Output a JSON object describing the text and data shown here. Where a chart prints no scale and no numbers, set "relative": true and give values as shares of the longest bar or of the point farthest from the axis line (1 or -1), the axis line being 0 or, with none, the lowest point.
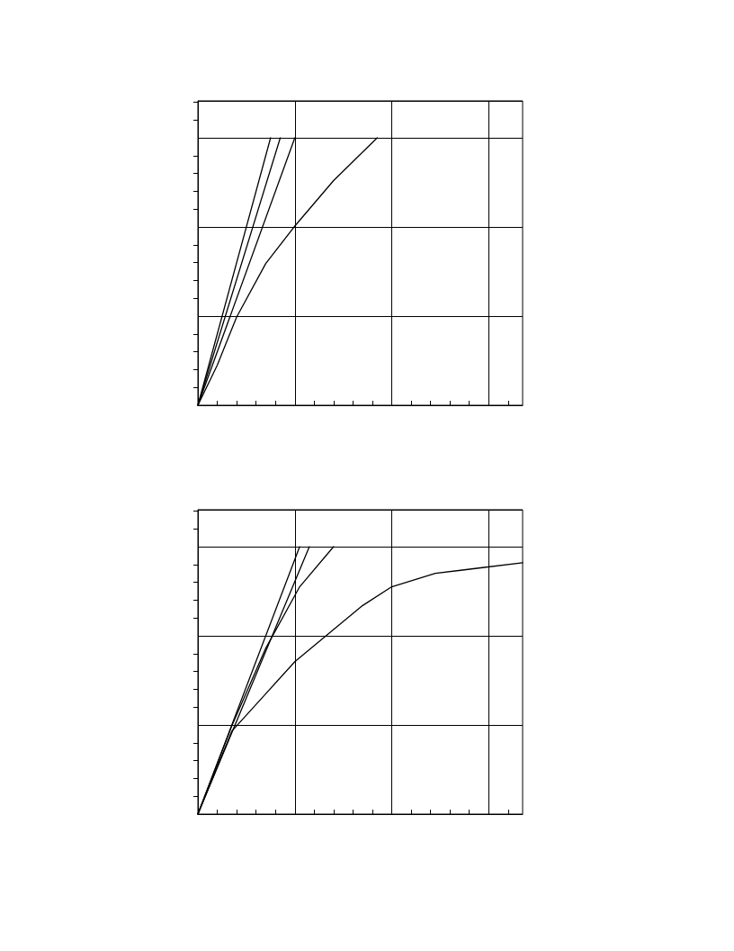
{
  "chart_data": [
    {
      "type": "line",
      "relative": true,
      "grid": true,
      "line_style": "solid",
      "categories": [
        null,
        null,
        null,
        null,
        null,
        null,
        null,
        null,
        null,
        null,
        null,
        null,
        null,
        null,
        null,
        null,
        null,
        null,
        null,
        null,
        null,
        null,
        null,
        null,
        null,
        null,
        null,
        null,
        null,
        null,
        null,
        null,
        null,
        null,
        null,
        null,
        null,
        null,
        null,
        null,
        null,
        null,
        null,
        null,
        null,
        null,
        null,
        null,
        null,
        null,
        null,
        null,
        null,
        null,
        null,
        null,
        null,
        null,
        null,
        null,
        null,
        null,
        null,
        null,
        null,
        null,
        null,
        null
      ],
      "series": [
        {
          "color": "#000000",
          "values": [
            0,
            null,
            null,
            null,
            null,
            null,
            null,
            null,
            null,
            null,
            null,
            null,
            null,
            null,
            null,
            1,
            null,
            null,
            null,
            null,
            null,
            null,
            null,
            null,
            null,
            null,
            null,
            null,
            null,
            null,
            null,
            null,
            null,
            null,
            null,
            null,
            null,
            null,
            null,
            null,
            null,
            null,
            null,
            null,
            null,
            null,
            null,
            null,
            null,
            null,
            null,
            null,
            null,
            null,
            null,
            null,
            null,
            null,
            null,
            null,
            null,
            null,
            null,
            null,
            null,
            null,
            null,
            null
          ]
        },
        {
          "color": "#000000",
          "values": [
            0,
            null,
            null,
            null,
            null,
            null,
            null,
            null,
            null,
            null,
            null,
            null,
            null,
            null,
            null,
            null,
            null,
            1,
            null,
            null,
            null,
            null,
            null,
            null,
            null,
            null,
            null,
            null,
            null,
            null,
            null,
            null,
            null,
            null,
            null,
            null,
            null,
            null,
            null,
            null,
            null,
            null,
            null,
            null,
            null,
            null,
            null,
            null,
            null,
            null,
            null,
            null,
            null,
            null,
            null,
            null,
            null,
            null,
            null,
            null,
            null,
            null,
            null,
            null,
            null,
            null,
            null,
            null
          ]
        },
        {
          "color": "#000000",
          "values": [
            0,
            null,
            null,
            null,
            null,
            null,
            null,
            null,
            null,
            null,
            null,
            null,
            null,
            null,
            null,
            null,
            null,
            null,
            null,
            null,
            1,
            null,
            null,
            null,
            null,
            null,
            null,
            null,
            null,
            null,
            null,
            null,
            null,
            null,
            null,
            null,
            null,
            null,
            null,
            null,
            null,
            null,
            null,
            null,
            null,
            null,
            null,
            null,
            null,
            null,
            null,
            null,
            null,
            null,
            null,
            null,
            null,
            null,
            null,
            null,
            null,
            null,
            null,
            null,
            null,
            null,
            null,
            null
          ]
        },
        {
          "color": "#000000",
          "values": [
            0,
            null,
            null,
            null,
            0.15,
            null,
            null,
            null,
            0.33,
            null,
            null,
            null,
            null,
            null,
            0.53,
            null,
            null,
            null,
            null,
            null,
            0.67,
            null,
            null,
            null,
            null,
            null,
            null,
            null,
            0.84,
            null,
            null,
            null,
            null,
            null,
            null,
            null,
            null,
            1,
            null,
            null,
            null,
            null,
            null,
            null,
            null,
            null,
            null,
            null,
            null,
            null,
            null,
            null,
            null,
            null,
            null,
            null,
            null,
            null,
            null,
            null,
            null,
            null,
            null,
            null,
            null,
            null,
            null,
            null
          ]
        }
      ]
    },
    {
      "type": "line",
      "relative": true,
      "grid": true,
      "line_style": "solid",
      "categories": [
        null,
        null,
        null,
        null,
        null,
        null,
        null,
        null,
        null,
        null,
        null,
        null,
        null,
        null,
        null,
        null,
        null,
        null,
        null,
        null,
        null,
        null,
        null,
        null,
        null,
        null,
        null,
        null,
        null,
        null,
        null,
        null,
        null,
        null,
        null,
        null,
        null,
        null,
        null,
        null,
        null,
        null,
        null,
        null,
        null,
        null,
        null,
        null,
        null,
        null,
        null,
        null,
        null,
        null,
        null,
        null,
        null,
        null,
        null,
        null,
        null,
        null,
        null,
        null,
        null,
        null,
        null,
        null
      ],
      "series": [
        {
          "color": "#000000",
          "values": [
            0,
            null,
            null,
            null,
            null,
            null,
            null,
            null,
            null,
            null,
            null,
            null,
            null,
            null,
            null,
            null,
            null,
            null,
            null,
            null,
            null,
            1,
            null,
            null,
            null,
            null,
            null,
            null,
            null,
            null,
            null,
            null,
            null,
            null,
            null,
            null,
            null,
            null,
            null,
            null,
            null,
            null,
            null,
            null,
            null,
            null,
            null,
            null,
            null,
            null,
            null,
            null,
            null,
            null,
            null,
            null,
            null,
            null,
            null,
            null,
            null,
            null,
            null,
            null,
            null,
            null,
            null,
            null
          ]
        },
        {
          "color": "#000000",
          "values": [
            0,
            null,
            null,
            null,
            null,
            null,
            null,
            null,
            null,
            null,
            null,
            null,
            null,
            null,
            null,
            null,
            null,
            null,
            null,
            null,
            null,
            null,
            null,
            1,
            null,
            null,
            null,
            null,
            null,
            null,
            null,
            null,
            null,
            null,
            null,
            null,
            null,
            null,
            null,
            null,
            null,
            null,
            null,
            null,
            null,
            null,
            null,
            null,
            null,
            null,
            null,
            null,
            null,
            null,
            null,
            null,
            null,
            null,
            null,
            null,
            null,
            null,
            null,
            null,
            null,
            null,
            null,
            null
          ]
        },
        {
          "color": "#000000",
          "values": [
            0,
            null,
            null,
            null,
            null,
            null,
            null,
            0.33,
            null,
            null,
            null,
            null,
            null,
            null,
            0.62,
            null,
            null,
            null,
            null,
            null,
            null,
            0.85,
            null,
            null,
            null,
            null,
            null,
            null,
            1,
            null,
            null,
            null,
            null,
            null,
            null,
            null,
            null,
            null,
            null,
            null,
            null,
            null,
            null,
            null,
            null,
            null,
            null,
            null,
            null,
            null,
            null,
            null,
            null,
            null,
            null,
            null,
            null,
            null,
            null,
            null,
            null,
            null,
            null,
            null,
            null,
            null,
            null,
            null
          ]
        },
        {
          "color": "#000000",
          "values": [
            0,
            null,
            null,
            null,
            null,
            null,
            null,
            0.31,
            null,
            null,
            null,
            null,
            null,
            null,
            0.45,
            null,
            null,
            null,
            null,
            null,
            0.57,
            null,
            null,
            null,
            null,
            null,
            null,
            null,
            0.69,
            null,
            null,
            null,
            null,
            null,
            0.78,
            null,
            null,
            null,
            null,
            null,
            0.85,
            null,
            null,
            null,
            null,
            null,
            null,
            null,
            null,
            0.9,
            null,
            null,
            null,
            null,
            null,
            null,
            null,
            null,
            0.92,
            null,
            null,
            null,
            null,
            null,
            null,
            null,
            null,
            0.94
          ]
        }
      ]
    }
  ]
}
